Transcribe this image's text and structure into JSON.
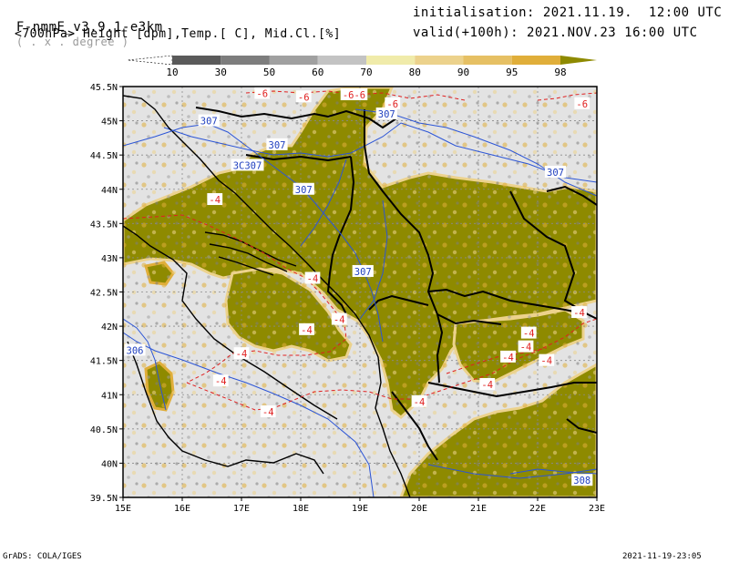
{
  "header": {
    "model": "F-nmmE_v3.9.1-e3km",
    "unit_note": "( . x . degree )",
    "fields": "<700hPa> Height [dpm],Temp.[ C], Mid.Cl.[%]",
    "init": "initialisation: 2021.11.19.  12:00 UTC",
    "valid": "valid(+100h): 2021.NOV.23 16:00 UTC"
  },
  "colorbar": {
    "labels": [
      "10",
      "30",
      "50",
      "60",
      "70",
      "80",
      "90",
      "95",
      "98"
    ],
    "colors": [
      "#5a5a5a",
      "#7d7d7d",
      "#a0a0a0",
      "#c3c3c3",
      "#f0ebaa",
      "#ecd28c",
      "#e6c064",
      "#e0ae3a",
      "#8e8a00"
    ]
  },
  "axes": {
    "lat_labels": [
      "45.5N",
      "45N",
      "44.5N",
      "44N",
      "43.5N",
      "43N",
      "42.5N",
      "42N",
      "41.5N",
      "41N",
      "40.5N",
      "40N",
      "39.5N"
    ],
    "lon_labels": [
      "15E",
      "16E",
      "17E",
      "18E",
      "19E",
      "20E",
      "21E",
      "22E",
      "23E"
    ]
  },
  "map_labels": {
    "height_contours": [
      {
        "text": "307",
        "lon": 16.45,
        "lat": 45.0
      },
      {
        "text": "307",
        "lon": 17.6,
        "lat": 44.65
      },
      {
        "text": "3C307",
        "lon": 17.1,
        "lat": 44.35
      },
      {
        "text": "307",
        "lon": 18.05,
        "lat": 44.0
      },
      {
        "text": "307",
        "lon": 19.45,
        "lat": 45.1
      },
      {
        "text": "307",
        "lon": 19.05,
        "lat": 42.8
      },
      {
        "text": "307",
        "lon": 22.3,
        "lat": 44.25
      },
      {
        "text": "306",
        "lon": 15.2,
        "lat": 41.65
      },
      {
        "text": "308",
        "lon": 22.75,
        "lat": 39.75
      }
    ],
    "temp_contours": [
      {
        "text": "-6",
        "lon": 17.35,
        "lat": 45.4
      },
      {
        "text": "-6",
        "lon": 18.05,
        "lat": 45.35
      },
      {
        "text": "-6-6",
        "lon": 18.9,
        "lat": 45.38
      },
      {
        "text": "-6",
        "lon": 19.55,
        "lat": 45.25
      },
      {
        "text": "-6",
        "lon": 22.75,
        "lat": 45.25
      },
      {
        "text": "-4",
        "lon": 16.55,
        "lat": 43.85
      },
      {
        "text": "-4",
        "lon": 18.2,
        "lat": 42.7
      },
      {
        "text": "-4",
        "lon": 18.65,
        "lat": 42.1
      },
      {
        "text": "-4",
        "lon": 18.1,
        "lat": 41.95
      },
      {
        "text": "-4",
        "lon": 17.0,
        "lat": 41.6
      },
      {
        "text": "-4",
        "lon": 16.65,
        "lat": 41.2
      },
      {
        "text": "-4",
        "lon": 17.45,
        "lat": 40.75
      },
      {
        "text": "-4",
        "lon": 20.0,
        "lat": 40.9
      },
      {
        "text": "-4",
        "lon": 21.15,
        "lat": 41.15
      },
      {
        "text": "-4",
        "lon": 21.5,
        "lat": 41.55
      },
      {
        "text": "-4",
        "lon": 21.8,
        "lat": 41.7
      },
      {
        "text": "-4",
        "lon": 22.15,
        "lat": 41.5
      },
      {
        "text": "-4",
        "lon": 22.7,
        "lat": 42.2
      },
      {
        "text": "-4",
        "lon": 21.85,
        "lat": 41.9
      }
    ]
  },
  "footer": {
    "left": "GrADS: COLA/IGES",
    "right": "2021-11-19-23:05"
  }
}
